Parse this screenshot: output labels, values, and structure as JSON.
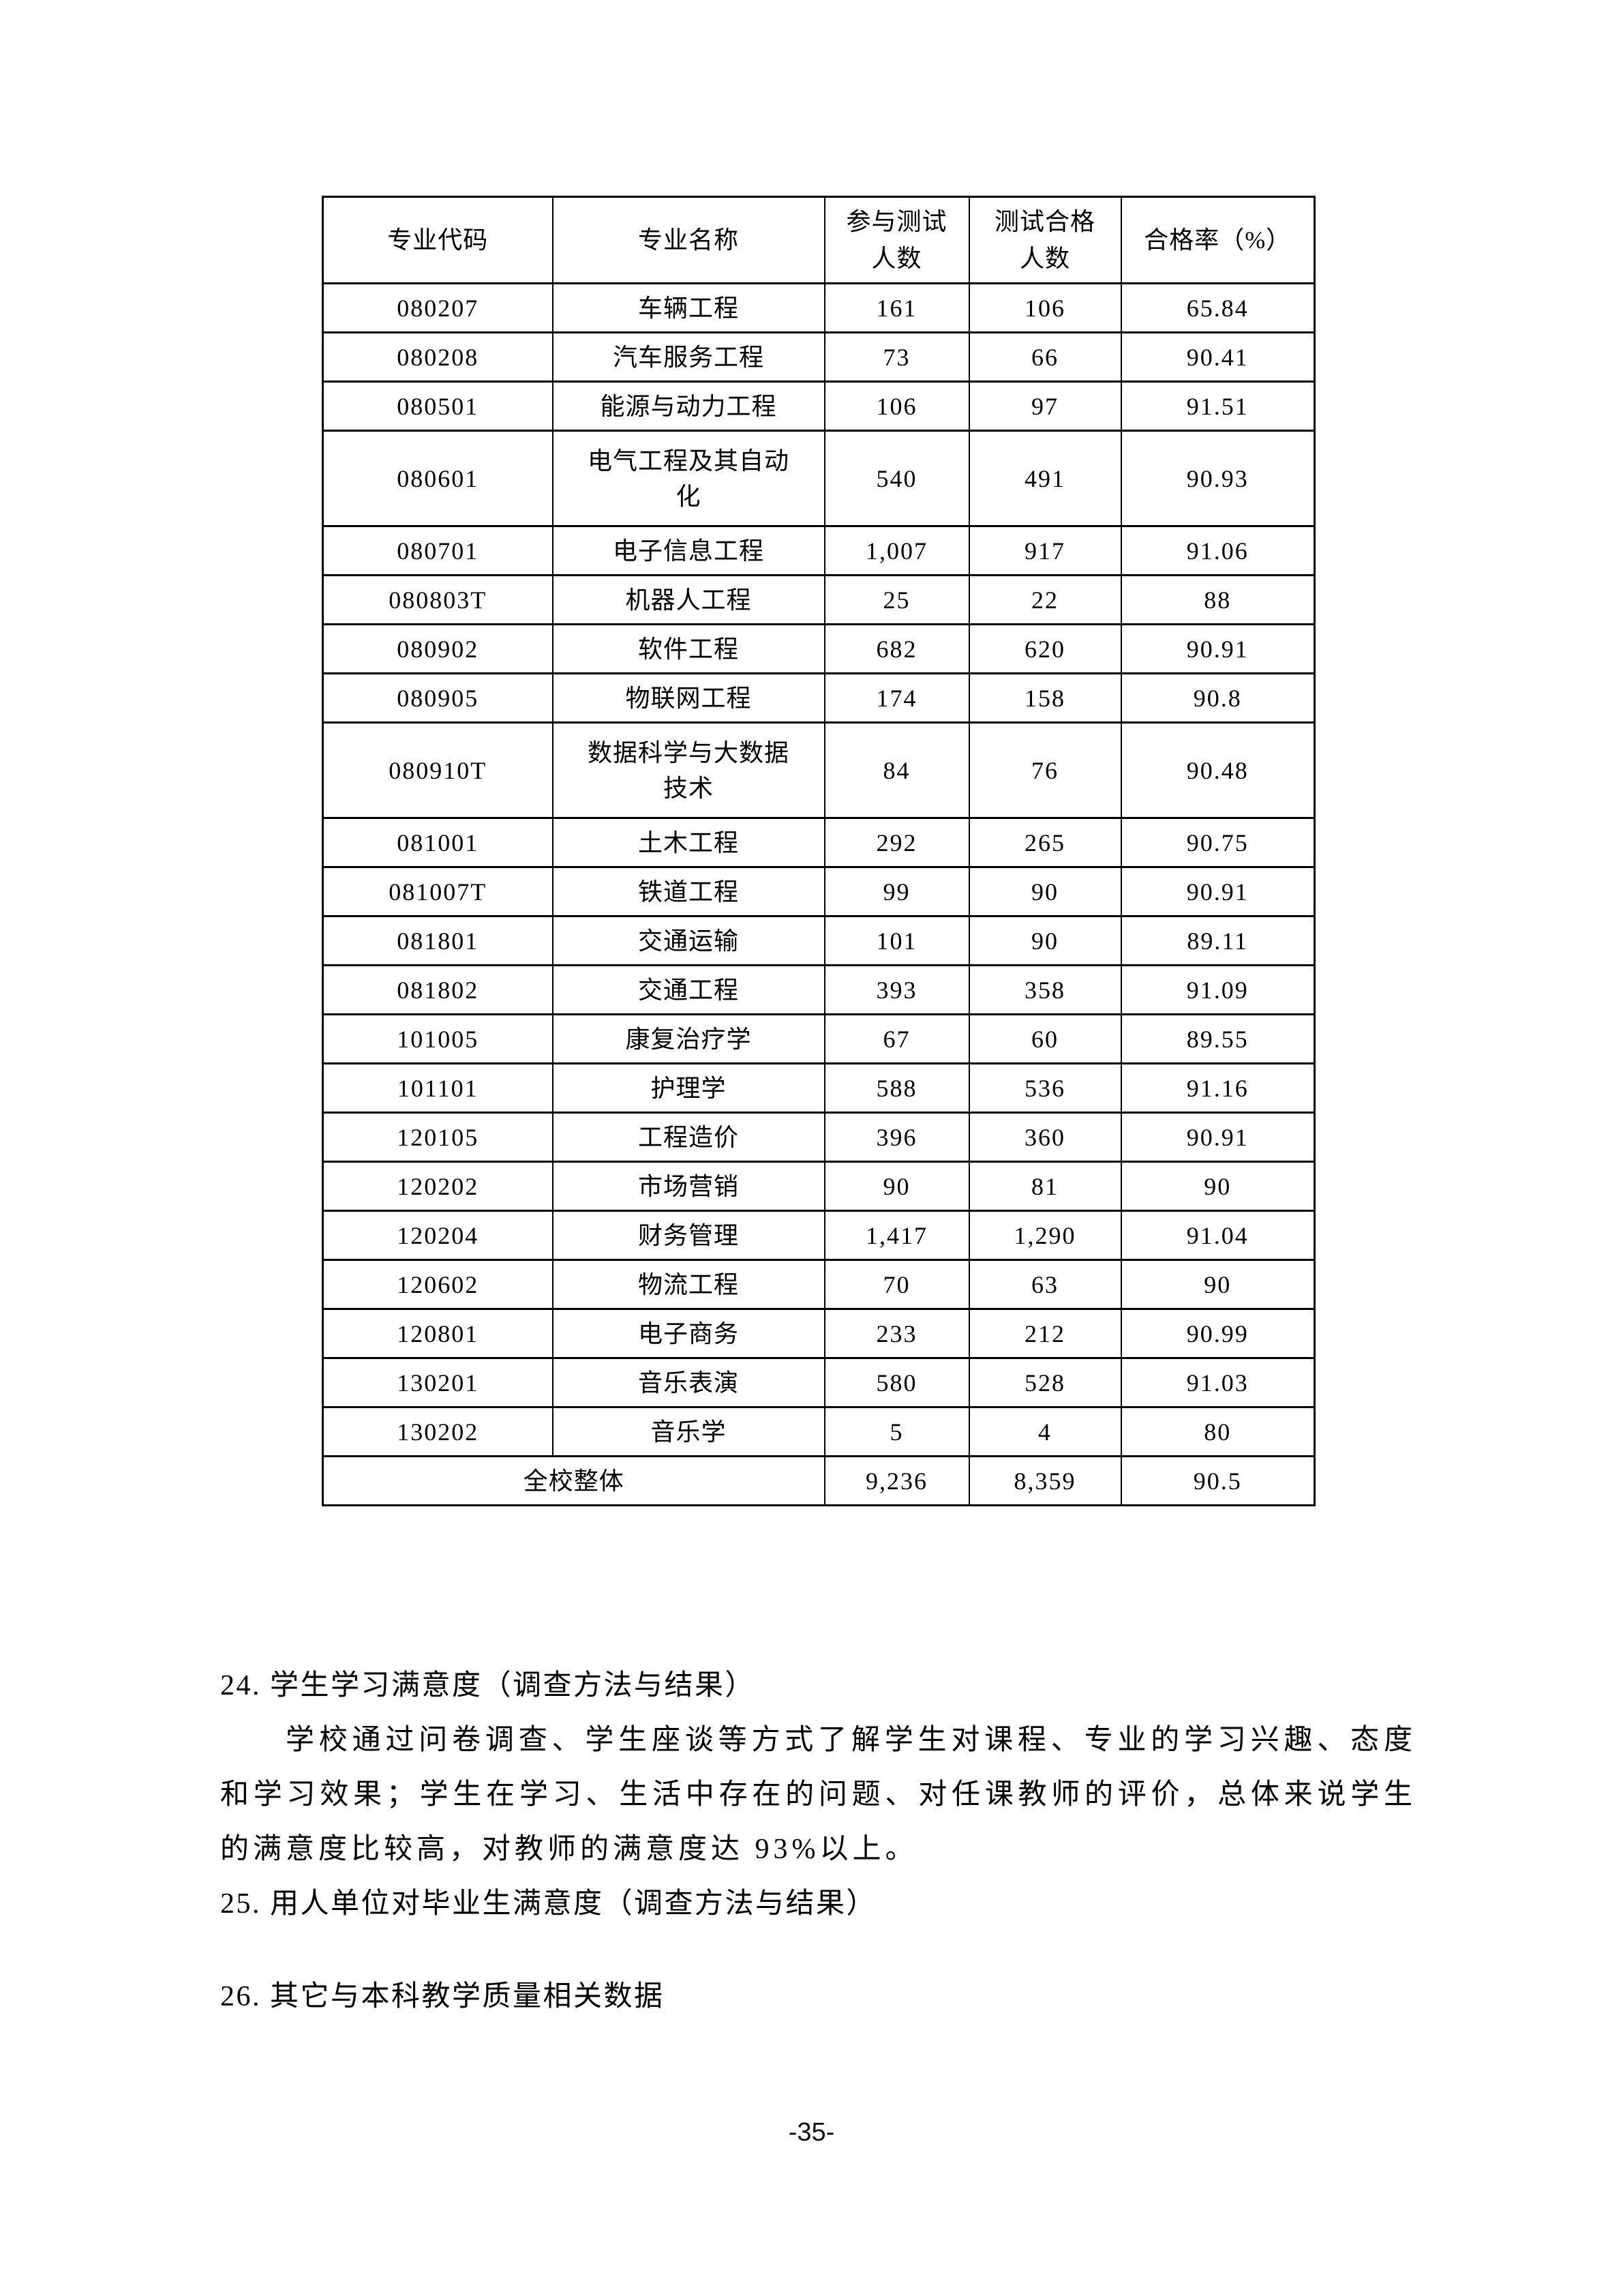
{
  "page": {
    "number_label": "-35-"
  },
  "table": {
    "headers": [
      {
        "key": "major-code",
        "label": "专业代码"
      },
      {
        "key": "major-name",
        "label": "专业名称"
      },
      {
        "key": "tested-count",
        "label": "参与测试\n人数"
      },
      {
        "key": "passed-count",
        "label": "测试合格\n人数"
      },
      {
        "key": "pass-rate",
        "label": "合格率（%）"
      }
    ],
    "rows": [
      [
        "080207",
        "车辆工程",
        "161",
        "106",
        "65.84"
      ],
      [
        "080208",
        "汽车服务工程",
        "73",
        "66",
        "90.41"
      ],
      [
        "080501",
        "能源与动力工程",
        "106",
        "97",
        "91.51"
      ],
      [
        "080601",
        "电气工程及其自动\n化",
        "540",
        "491",
        "90.93"
      ],
      [
        "080701",
        "电子信息工程",
        "1,007",
        "917",
        "91.06"
      ],
      [
        "080803T",
        "机器人工程",
        "25",
        "22",
        "88"
      ],
      [
        "080902",
        "软件工程",
        "682",
        "620",
        "90.91"
      ],
      [
        "080905",
        "物联网工程",
        "174",
        "158",
        "90.8"
      ],
      [
        "080910T",
        "数据科学与大数据\n技术",
        "84",
        "76",
        "90.48"
      ],
      [
        "081001",
        "土木工程",
        "292",
        "265",
        "90.75"
      ],
      [
        "081007T",
        "铁道工程",
        "99",
        "90",
        "90.91"
      ],
      [
        "081801",
        "交通运输",
        "101",
        "90",
        "89.11"
      ],
      [
        "081802",
        "交通工程",
        "393",
        "358",
        "91.09"
      ],
      [
        "101005",
        "康复治疗学",
        "67",
        "60",
        "89.55"
      ],
      [
        "101101",
        "护理学",
        "588",
        "536",
        "91.16"
      ],
      [
        "120105",
        "工程造价",
        "396",
        "360",
        "90.91"
      ],
      [
        "120202",
        "市场营销",
        "90",
        "81",
        "90"
      ],
      [
        "120204",
        "财务管理",
        "1,417",
        "1,290",
        "91.04"
      ],
      [
        "120602",
        "物流工程",
        "70",
        "63",
        "90"
      ],
      [
        "120801",
        "电子商务",
        "233",
        "212",
        "90.99"
      ],
      [
        "130201",
        "音乐表演",
        "580",
        "528",
        "91.03"
      ],
      [
        "130202",
        "音乐学",
        "5",
        "4",
        "80"
      ]
    ],
    "total_row": {
      "label": "全校整体",
      "tested": "9,236",
      "passed": "8,359",
      "rate": "90.5"
    }
  },
  "sections": {
    "s24": "24. 学生学习满意度（调查方法与结果）",
    "s24_paragraph": "学校通过问卷调查、学生座谈等方式了解学生对课程、专业的学习兴趣、态度和学习效果；学生在学习、生活中存在的问题、对任课教师的评价，总体来说学生的满意度比较高，对教师的满意度达 93%以上。",
    "s25": "25. 用人单位对毕业生满意度（调查方法与结果）",
    "s26": "26. 其它与本科教学质量相关数据"
  }
}
